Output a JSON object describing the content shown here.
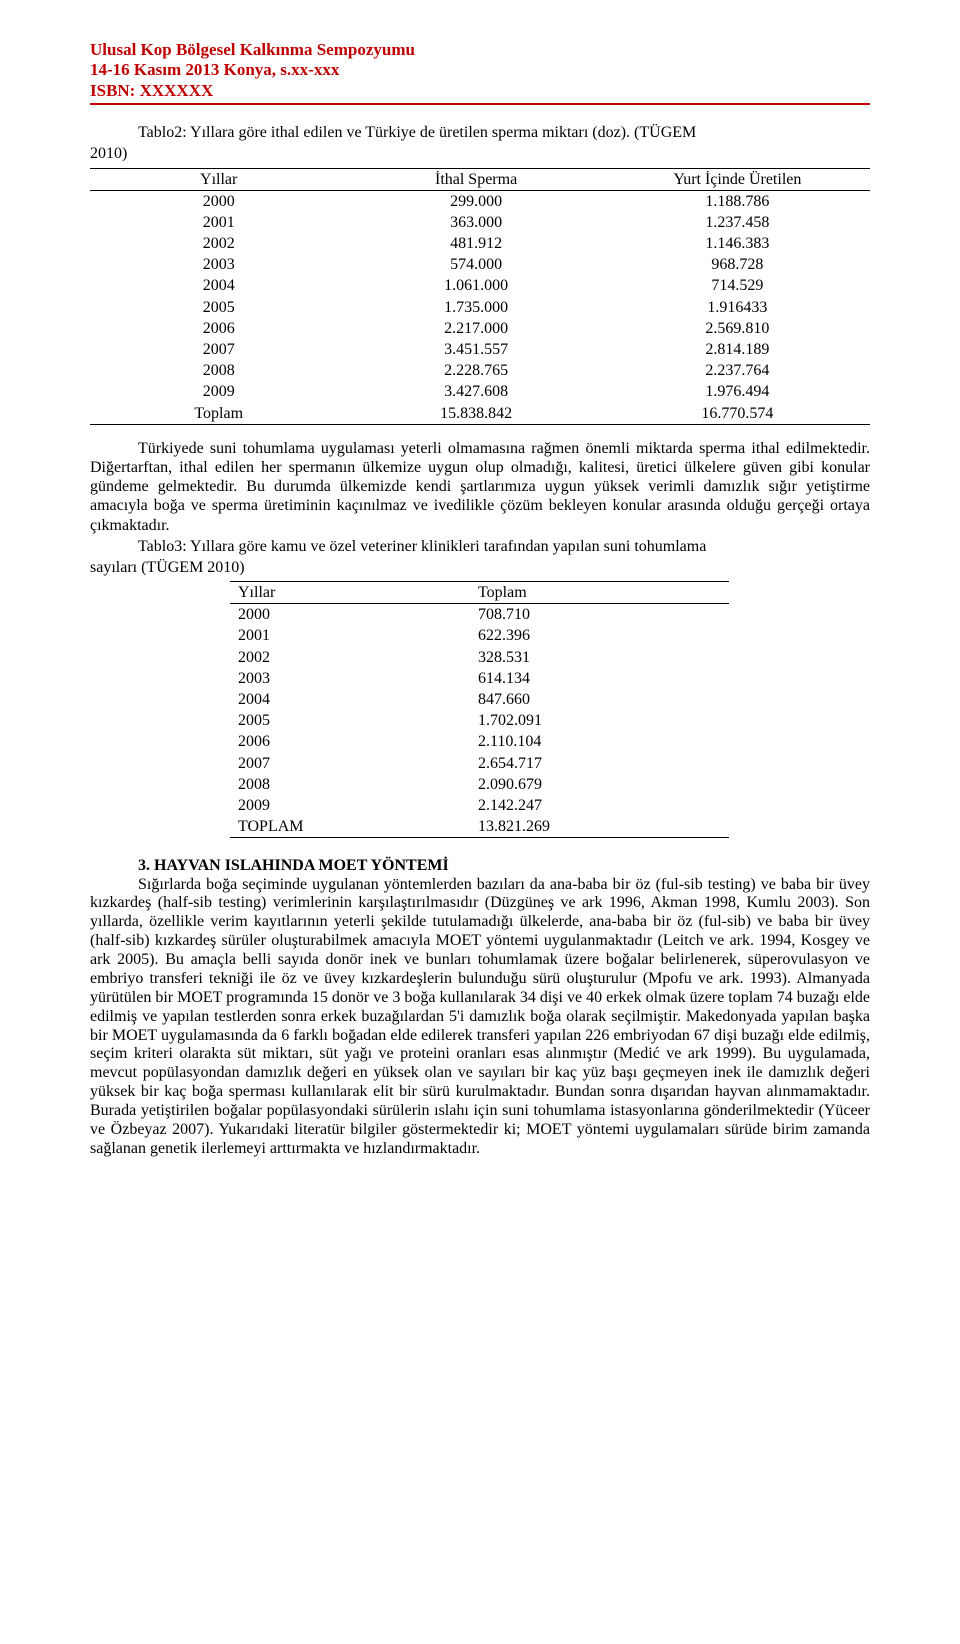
{
  "colors": {
    "header_text": "#c00000",
    "header_rule": "#c00000",
    "body_text": "#000000",
    "background": "#ffffff",
    "table_rule": "#000000"
  },
  "typography": {
    "family": "Times New Roman",
    "body_size_pt": 12,
    "header_size_pt": 13,
    "header_weight": "bold",
    "section_head_weight": "bold",
    "line_height": 1.18
  },
  "header": {
    "line1": "Ulusal Kop Bölgesel Kalkınma Sempozyumu",
    "line2": "14-16 Kasım 2013  Konya, s.xx-xxx",
    "line3": "ISBN: XXXXXX"
  },
  "table2": {
    "type": "table",
    "caption_line1": "Tablo2: Yıllara göre ithal edilen ve Türkiye de üretilen sperma miktarı (doz). (TÜGEM",
    "caption_line2": "2010)",
    "columns": [
      "Yıllar",
      "İthal Sperma",
      "Yurt İçinde Üretilen"
    ],
    "col_align": [
      "center",
      "center",
      "center"
    ],
    "rows": [
      [
        "2000",
        "299.000",
        "1.188.786"
      ],
      [
        "2001",
        "363.000",
        "1.237.458"
      ],
      [
        "2002",
        "481.912",
        "1.146.383"
      ],
      [
        "2003",
        "574.000",
        "968.728"
      ],
      [
        "2004",
        "1.061.000",
        "714.529"
      ],
      [
        "2005",
        "1.735.000",
        "1.916433"
      ],
      [
        "2006",
        "2.217.000",
        "2.569.810"
      ],
      [
        "2007",
        "3.451.557",
        "2.814.189"
      ],
      [
        "2008",
        "2.228.765",
        "2.237.764"
      ],
      [
        "2009",
        "3.427.608",
        "1.976.494"
      ],
      [
        "Toplam",
        "15.838.842",
        "16.770.574"
      ]
    ]
  },
  "para1": "Türkiyede suni tohumlama uygulaması yeterli olmamasına rağmen önemli miktarda sperma ithal edilmektedir. Diğertarftan, ithal edilen her spermanın ülkemize uygun olup olmadığı, kalitesi, üretici ülkelere güven gibi konular gündeme gelmektedir. Bu durumda ülkemizde kendi şartlarımıza uygun yüksek verimli damızlık sığır yetiştirme amacıyla boğa ve sperma üretiminin kaçınılmaz ve ivedilikle çözüm bekleyen konular arasında olduğu gerçeği ortaya çıkmaktadır.",
  "table3": {
    "type": "table",
    "caption_line1": "Tablo3: Yıllara göre kamu ve özel veteriner klinikleri tarafından yapılan suni tohumlama",
    "caption_line2": "sayıları (TÜGEM 2010)",
    "columns": [
      "Yıllar",
      "Toplam"
    ],
    "col_align": [
      "left",
      "left"
    ],
    "rows": [
      [
        "2000",
        "708.710"
      ],
      [
        "2001",
        "622.396"
      ],
      [
        "2002",
        "328.531"
      ],
      [
        "2003",
        "614.134"
      ],
      [
        "2004",
        "847.660"
      ],
      [
        "2005",
        "1.702.091"
      ],
      [
        "2006",
        "2.110.104"
      ],
      [
        "2007",
        "2.654.717"
      ],
      [
        "2008",
        "2.090.679"
      ],
      [
        "2009",
        "2.142.247"
      ],
      [
        "TOPLAM",
        "13.821.269"
      ]
    ]
  },
  "section3": {
    "heading": "3. HAYVAN ISLAHINDA MOET YÖNTEMİ",
    "body": "Sığırlarda boğa seçiminde uygulanan yöntemlerden bazıları da ana-baba bir öz (ful-sib testing) ve baba bir üvey kızkardeş (half-sib testing) verimlerinin karşılaştırılmasıdır (Düzgüneş ve ark 1996, Akman 1998, Kumlu 2003). Son yıllarda, özellikle verim kayıtlarının yeterli şekilde tutulamadığı ülkelerde, ana-baba bir öz (ful-sib) ve baba bir üvey (half-sib) kızkardeş sürüler oluşturabilmek amacıyla MOET yöntemi uygulanmaktadır (Leitch ve ark. 1994, Kosgey ve ark 2005). Bu amaçla belli sayıda donör inek ve bunları tohumlamak üzere boğalar belirlenerek, süperovulasyon ve embriyo transferi tekniği ile öz ve üvey kızkardeşlerin bulunduğu sürü oluşturulur (Mpofu ve ark. 1993). Almanyada yürütülen bir MOET programında 15 donör ve 3 boğa kullanılarak 34 dişi ve 40 erkek olmak üzere toplam 74 buzağı elde edilmiş ve yapılan testlerden sonra erkek buzağılardan 5'i damızlık boğa olarak seçilmiştir. Makedonyada yapılan başka bir MOET uygulamasında da 6 farklı boğadan elde edilerek transferi yapılan 226 embriyodan 67 dişi buzağı elde edilmiş, seçim kriteri olarakta süt miktarı, süt yağı ve proteini oranları esas alınmıştır (Medić ve ark 1999). Bu uygulamada, mevcut popülasyondan damızlık değeri en yüksek olan ve sayıları bir kaç yüz başı geçmeyen inek ile damızlık değeri yüksek bir kaç boğa sperması kullanılarak elit bir sürü kurulmaktadır. Bundan sonra dışarıdan hayvan alınmamaktadır. Burada yetiştirilen boğalar popülasyondaki sürülerin ıslahı için suni tohumlama istasyonlarına gönderilmektedir (Yüceer ve Özbeyaz 2007). Yukarıdaki literatür bilgiler göstermektedir ki; MOET yöntemi uygulamaları sürüde birim zamanda sağlanan genetik ilerlemeyi arttırmakta ve hızlandırmaktadır."
  }
}
